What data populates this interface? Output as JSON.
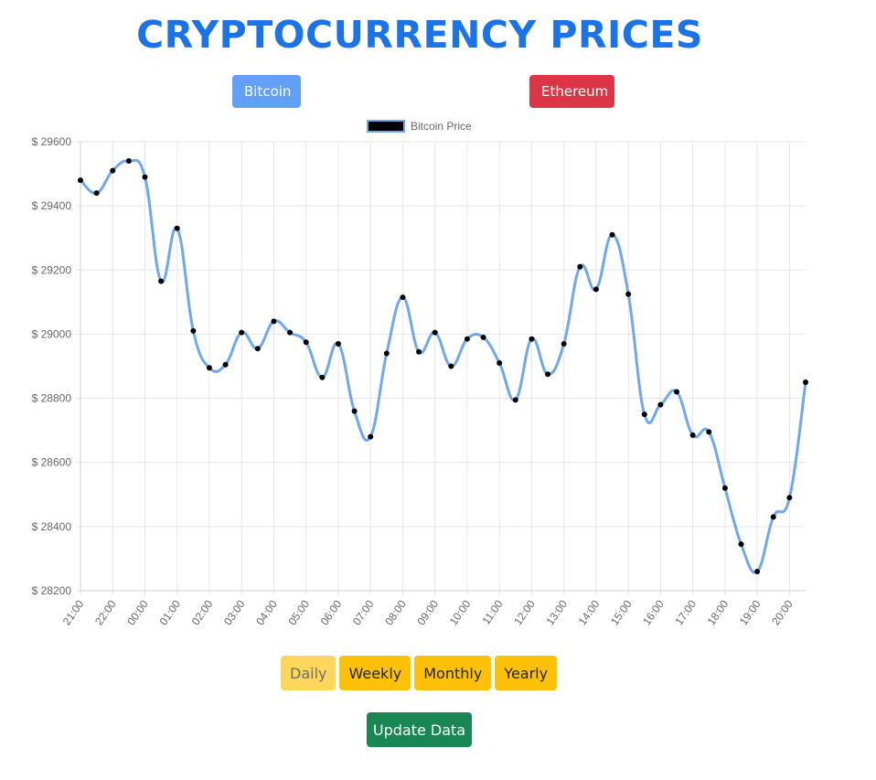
{
  "page": {
    "title": "CRYPTOCURRENCY PRICES"
  },
  "coins": {
    "bitcoin_label": "Bitcoin",
    "ethereum_label": "Ethereum"
  },
  "periods": [
    {
      "label": "Daily",
      "active": true
    },
    {
      "label": "Weekly",
      "active": false
    },
    {
      "label": "Monthly",
      "active": false
    },
    {
      "label": "Yearly",
      "active": false
    }
  ],
  "update_label": "Update Data",
  "colors": {
    "line": "#6fa8f0",
    "point": "#000000",
    "grid": "#e6e6e6",
    "text": "#666666"
  },
  "chart_data": {
    "type": "line",
    "legend": "Bitcoin Price",
    "legend_position": "top-center",
    "grid": true,
    "ylim": [
      28200,
      29600
    ],
    "yticks": [
      28200,
      28400,
      28600,
      28800,
      29000,
      29200,
      29400,
      29600
    ],
    "ytick_labels": [
      "$ 28200",
      "$ 28400",
      "$ 28600",
      "$ 28800",
      "$ 29000",
      "$ 29200",
      "$ 29400",
      "$ 29600"
    ],
    "x": [
      "21:00",
      "21:30",
      "22:00",
      "22:30",
      "00:00",
      "00:30",
      "01:00",
      "01:30",
      "02:00",
      "02:30",
      "03:00",
      "03:30",
      "04:00",
      "04:30",
      "05:00",
      "05:30",
      "06:00",
      "06:30",
      "07:00",
      "07:30",
      "08:00",
      "08:30",
      "09:00",
      "09:30",
      "10:00",
      "10:30",
      "11:00",
      "11:30",
      "12:00",
      "12:30",
      "13:00",
      "13:30",
      "14:00",
      "14:30",
      "15:00",
      "15:30",
      "16:00",
      "16:30",
      "17:00",
      "17:30",
      "18:00",
      "18:30",
      "19:00",
      "19:30",
      "20:00",
      "20:30"
    ],
    "xtick_labels": [
      "21:00",
      "22:00",
      "00:00",
      "01:00",
      "02:00",
      "03:00",
      "04:00",
      "05:00",
      "06:00",
      "07:00",
      "08:00",
      "09:00",
      "10:00",
      "11:00",
      "12:00",
      "13:00",
      "14:00",
      "15:00",
      "16:00",
      "17:00",
      "18:00",
      "19:00",
      "20:00"
    ],
    "series": [
      {
        "name": "Bitcoin Price",
        "values": [
          29480,
          29440,
          29510,
          29540,
          29490,
          29165,
          29330,
          29010,
          28895,
          28905,
          29005,
          28955,
          29040,
          29005,
          28975,
          28865,
          28970,
          28760,
          28680,
          28940,
          29115,
          28945,
          29005,
          28900,
          28985,
          28990,
          28910,
          28795,
          28985,
          28875,
          28970,
          29210,
          29140,
          29310,
          29125,
          28750,
          28780,
          28820,
          28685,
          28695,
          28520,
          28345,
          28260,
          28430,
          28490,
          28850
        ]
      }
    ]
  }
}
